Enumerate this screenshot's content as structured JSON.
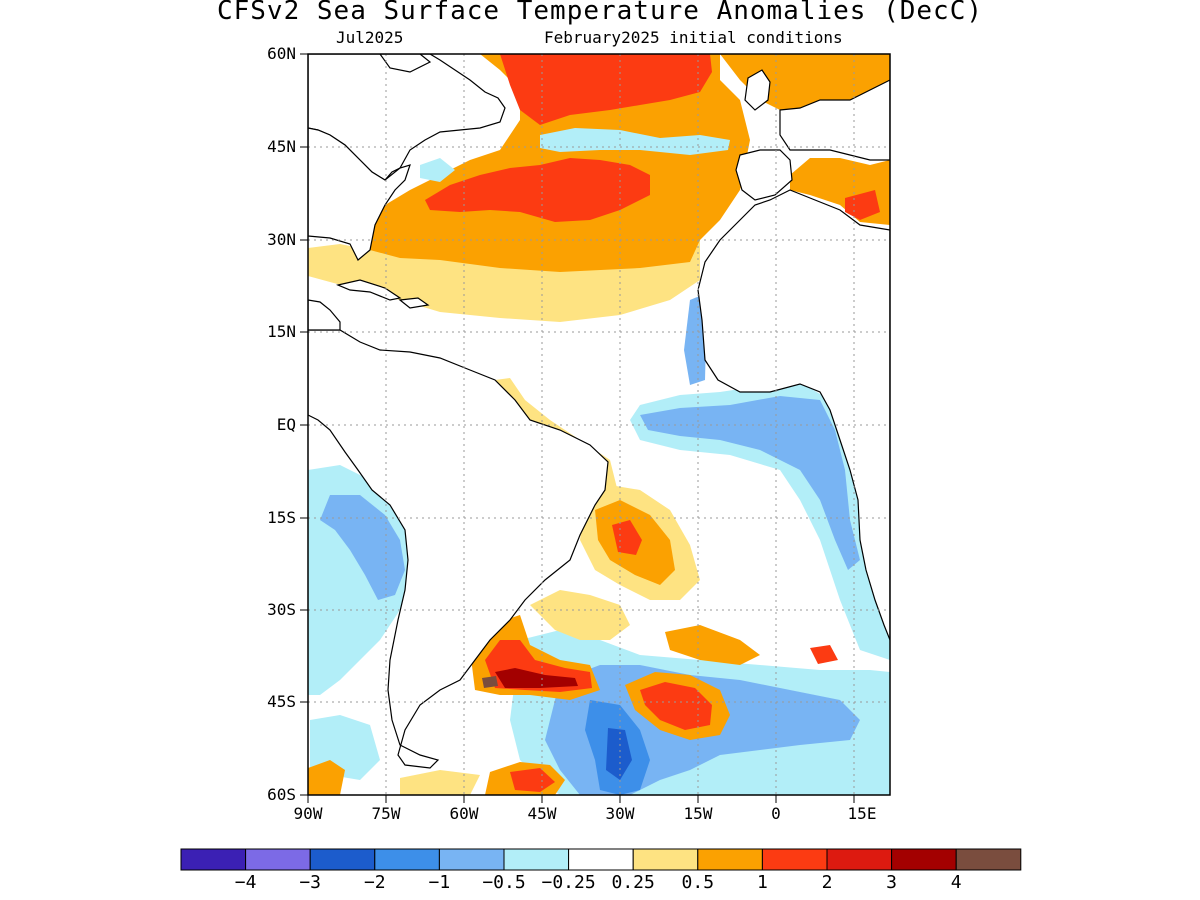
{
  "title": "CFSv2 Sea Surface Temperature Anomalies (DecC)",
  "subtitle_left": "Jul2025",
  "subtitle_right": "February2025 initial conditions",
  "lat_labels": [
    "60N",
    "45N",
    "30N",
    "15N",
    "EQ",
    "15S",
    "30S",
    "45S",
    "60S"
  ],
  "lon_labels": [
    "90W",
    "75W",
    "60W",
    "45W",
    "30W",
    "15W",
    "0",
    "15E"
  ],
  "legend": {
    "colors": [
      "#3b20b4",
      "#7c6ae6",
      "#1c5ccc",
      "#3d8fe9",
      "#78b4f3",
      "#b2eef8",
      "#ffffff",
      "#fee382",
      "#fba101",
      "#fc3b12",
      "#dd1a10",
      "#a30000",
      "#7a4d3e"
    ],
    "labels": [
      "−4",
      "−3",
      "−2",
      "−1",
      "−0.5",
      "−0.25",
      "0.25",
      "0.5",
      "1",
      "2",
      "3",
      "4"
    ]
  },
  "colors": {
    "land": "#ffffff",
    "coast": "#000000",
    "grid": "#9a9a9a"
  }
}
